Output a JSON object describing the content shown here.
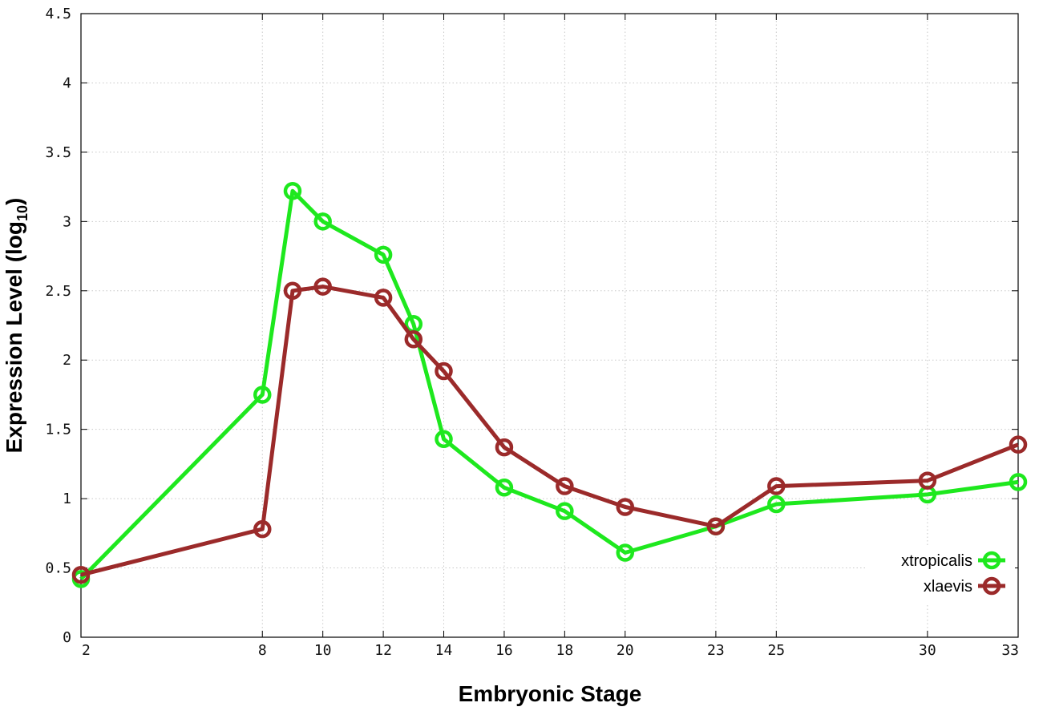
{
  "chart_data": {
    "type": "line",
    "xlabel": "Embryonic Stage",
    "ylabel_main": "Expression Level (log",
    "ylabel_sub": "10",
    "ylabel_close": ")",
    "ylim": [
      0,
      4.5
    ],
    "yticks": [
      "0",
      "0.5",
      "1",
      "1.5",
      "2",
      "2.5",
      "3",
      "3.5",
      "4",
      "4.5"
    ],
    "ytick_values": [
      0,
      0.5,
      1,
      1.5,
      2,
      2.5,
      3,
      3.5,
      4,
      4.5
    ],
    "categories": [
      "2",
      "8",
      "9",
      "10",
      "12",
      "13",
      "14",
      "16",
      "18",
      "20",
      "23",
      "25",
      "30",
      "33"
    ],
    "xticks": [
      "2",
      "8",
      "10",
      "12",
      "14",
      "16",
      "18",
      "20",
      "23",
      "25",
      "30",
      "33"
    ],
    "grid": true,
    "legend_position": "bottom-right",
    "series": [
      {
        "name": "xtropicalis",
        "color": "#1ee81e",
        "values": [
          0.42,
          1.75,
          3.22,
          3.0,
          2.76,
          2.26,
          1.43,
          1.08,
          0.91,
          0.61,
          0.8,
          0.96,
          1.03,
          1.12
        ]
      },
      {
        "name": "xlaevis",
        "color": "#9b2a2a",
        "values": [
          0.45,
          0.78,
          2.5,
          2.53,
          2.45,
          2.15,
          1.92,
          1.37,
          1.09,
          0.94,
          0.8,
          1.09,
          1.13,
          1.39
        ]
      }
    ]
  }
}
